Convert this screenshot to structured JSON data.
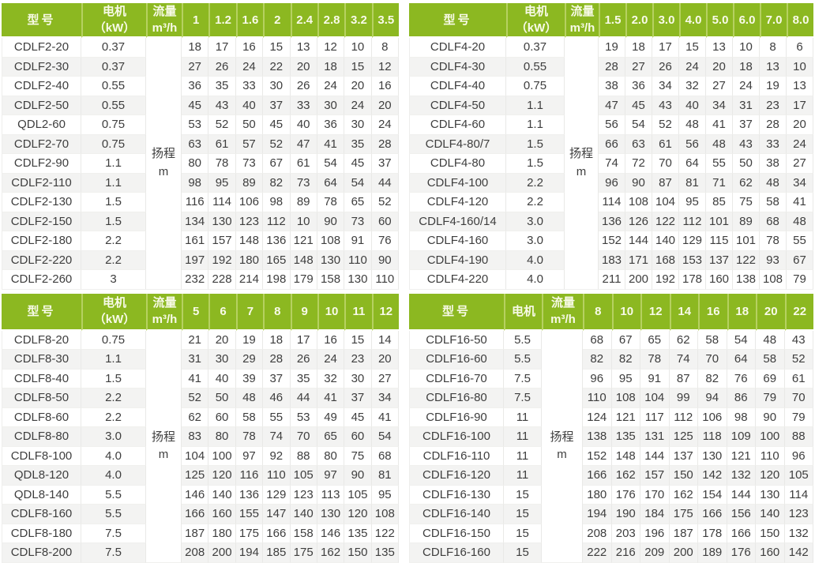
{
  "colors": {
    "header_bg": "#8cb821",
    "header_divider": "#b6d161",
    "header_text": "#f8fae8",
    "body_text": "#3e3e3e",
    "row_alt_bg": "#f3f3f2"
  },
  "shared": {
    "head_label": "扬程",
    "head_unit": "m"
  },
  "tables": [
    {
      "name": "CDLF2",
      "headers": {
        "model": "型号",
        "motor": [
          "电机",
          "（kW）"
        ],
        "flow": [
          "流量",
          "m³/h"
        ]
      },
      "flow_columns": [
        "1",
        "1.2",
        "1.6",
        "2",
        "2.4",
        "2.8",
        "3.2",
        "3.5"
      ],
      "rows": [
        {
          "model": "CDLF2-20",
          "motor": "0.37",
          "heads": [
            18,
            17,
            16,
            15,
            13,
            12,
            10,
            8
          ]
        },
        {
          "model": "CDLF2-30",
          "motor": "0.37",
          "heads": [
            27,
            26,
            24,
            22,
            20,
            18,
            15,
            12
          ]
        },
        {
          "model": "CDLF2-40",
          "motor": "0.55",
          "heads": [
            36,
            35,
            33,
            30,
            26,
            24,
            20,
            16
          ]
        },
        {
          "model": "CDLF2-50",
          "motor": "0.55",
          "heads": [
            45,
            43,
            40,
            37,
            33,
            30,
            24,
            20
          ]
        },
        {
          "model": "QDL2-60",
          "motor": "0.75",
          "heads": [
            53,
            52,
            50,
            45,
            40,
            36,
            30,
            24
          ]
        },
        {
          "model": "CDLF2-70",
          "motor": "0.75",
          "heads": [
            63,
            61,
            57,
            52,
            47,
            41,
            35,
            28
          ]
        },
        {
          "model": "CDLF2-90",
          "motor": "1.1",
          "heads": [
            80,
            78,
            73,
            67,
            61,
            54,
            45,
            37
          ]
        },
        {
          "model": "CDLF2-110",
          "motor": "1.1",
          "heads": [
            98,
            95,
            89,
            82,
            73,
            64,
            54,
            44
          ]
        },
        {
          "model": "CDLF2-130",
          "motor": "1.5",
          "heads": [
            116,
            114,
            106,
            98,
            89,
            78,
            65,
            52
          ]
        },
        {
          "model": "CDLF2-150",
          "motor": "1.5",
          "heads": [
            134,
            130,
            123,
            112,
            10,
            90,
            73,
            60
          ]
        },
        {
          "model": "CDLF2-180",
          "motor": "2.2",
          "heads": [
            161,
            157,
            148,
            136,
            121,
            108,
            91,
            76
          ]
        },
        {
          "model": "CDLF2-220",
          "motor": "2.2",
          "heads": [
            197,
            192,
            180,
            165,
            148,
            130,
            110,
            90
          ]
        },
        {
          "model": "CDLF2-260",
          "motor": "3",
          "heads": [
            232,
            228,
            214,
            198,
            179,
            158,
            130,
            110
          ]
        }
      ]
    },
    {
      "name": "CDLF4",
      "headers": {
        "model": "型号",
        "motor": [
          "电机",
          "（kW）"
        ],
        "flow": [
          "流量",
          "m³/h"
        ]
      },
      "flow_columns": [
        "1.5",
        "2.0",
        "3.0",
        "4.0",
        "5.0",
        "6.0",
        "7.0",
        "8.0"
      ],
      "rows": [
        {
          "model": "CDLF4-20",
          "motor": "0.37",
          "heads": [
            19,
            18,
            17,
            15,
            13,
            10,
            8,
            6
          ]
        },
        {
          "model": "CDLF4-30",
          "motor": "0.55",
          "heads": [
            28,
            27,
            26,
            24,
            20,
            18,
            13,
            10
          ]
        },
        {
          "model": "CDLF4-40",
          "motor": "0.75",
          "heads": [
            38,
            36,
            34,
            32,
            27,
            24,
            19,
            13
          ]
        },
        {
          "model": "CDLF4-50",
          "motor": "1.1",
          "heads": [
            47,
            45,
            43,
            40,
            34,
            31,
            23,
            17
          ]
        },
        {
          "model": "CDLF4-60",
          "motor": "1.1",
          "heads": [
            56,
            54,
            52,
            48,
            41,
            37,
            28,
            20
          ]
        },
        {
          "model": "CDLF4-80/7",
          "motor": "1.5",
          "heads": [
            66,
            63,
            61,
            56,
            48,
            43,
            33,
            24
          ]
        },
        {
          "model": "CDLF4-80",
          "motor": "1.5",
          "heads": [
            74,
            72,
            70,
            64,
            55,
            50,
            38,
            27
          ]
        },
        {
          "model": "CDLF4-100",
          "motor": "2.2",
          "heads": [
            96,
            90,
            87,
            81,
            71,
            62,
            48,
            34
          ]
        },
        {
          "model": "CDLF4-120",
          "motor": "2.2",
          "heads": [
            114,
            108,
            104,
            95,
            85,
            75,
            58,
            41
          ]
        },
        {
          "model": "CDLF4-160/14",
          "motor": "3.0",
          "heads": [
            136,
            126,
            122,
            112,
            101,
            89,
            68,
            48
          ]
        },
        {
          "model": "CDLF4-160",
          "motor": "3.0",
          "heads": [
            152,
            144,
            140,
            129,
            115,
            101,
            78,
            55
          ]
        },
        {
          "model": "CDLF4-190",
          "motor": "4.0",
          "heads": [
            183,
            171,
            168,
            153,
            137,
            122,
            93,
            67
          ]
        },
        {
          "model": "CDLF4-220",
          "motor": "4.0",
          "heads": [
            211,
            200,
            192,
            178,
            160,
            138,
            108,
            79
          ]
        }
      ]
    },
    {
      "name": "CDLF8",
      "headers": {
        "model": "型号",
        "motor": [
          "电机",
          "（kW）"
        ],
        "flow": [
          "流量",
          "m³/h"
        ]
      },
      "flow_columns": [
        "5",
        "6",
        "7",
        "8",
        "9",
        "10",
        "11",
        "12"
      ],
      "rows": [
        {
          "model": "CDLF8-20",
          "motor": "0.75",
          "heads": [
            21,
            20,
            19,
            18,
            17,
            16,
            15,
            14
          ]
        },
        {
          "model": "CDLF8-30",
          "motor": "1.1",
          "heads": [
            31,
            30,
            29,
            28,
            26,
            24,
            23,
            20
          ]
        },
        {
          "model": "CDLF8-40",
          "motor": "1.5",
          "heads": [
            41,
            40,
            39,
            37,
            35,
            32,
            30,
            27
          ]
        },
        {
          "model": "CDLF8-50",
          "motor": "2.2",
          "heads": [
            52,
            50,
            48,
            46,
            44,
            41,
            37,
            34
          ]
        },
        {
          "model": "CDLF8-60",
          "motor": "2.2",
          "heads": [
            62,
            60,
            58,
            55,
            53,
            49,
            45,
            41
          ]
        },
        {
          "model": "CDLF8-80",
          "motor": "3.0",
          "heads": [
            83,
            80,
            78,
            74,
            70,
            65,
            60,
            54
          ]
        },
        {
          "model": "CDLF8-100",
          "motor": "4.0",
          "heads": [
            104,
            100,
            97,
            92,
            88,
            80,
            75,
            68
          ]
        },
        {
          "model": "QDL8-120",
          "motor": "4.0",
          "heads": [
            125,
            120,
            116,
            110,
            105,
            97,
            90,
            81
          ]
        },
        {
          "model": "QDL8-140",
          "motor": "5.5",
          "heads": [
            146,
            140,
            136,
            129,
            123,
            113,
            105,
            95
          ]
        },
        {
          "model": "CDLF8-160",
          "motor": "5.5",
          "heads": [
            166,
            160,
            155,
            147,
            140,
            130,
            120,
            108
          ]
        },
        {
          "model": "CDLF8-180",
          "motor": "7.5",
          "heads": [
            187,
            180,
            175,
            166,
            158,
            146,
            135,
            122
          ]
        },
        {
          "model": "CDLF8-200",
          "motor": "7.5",
          "heads": [
            208,
            200,
            194,
            185,
            175,
            162,
            150,
            135
          ]
        }
      ]
    },
    {
      "name": "CDLF16",
      "headers": {
        "model": "型号",
        "motor": [
          "电机"
        ],
        "flow": [
          "流量",
          "m³/h"
        ]
      },
      "flow_columns": [
        "8",
        "10",
        "12",
        "14",
        "16",
        "18",
        "20",
        "22"
      ],
      "rows": [
        {
          "model": "CDLF16-50",
          "motor": "5.5",
          "heads": [
            68,
            67,
            65,
            62,
            58,
            54,
            48,
            43
          ]
        },
        {
          "model": "CDLF16-60",
          "motor": "5.5",
          "heads": [
            82,
            82,
            78,
            74,
            70,
            64,
            58,
            52
          ]
        },
        {
          "model": "CDLF16-70",
          "motor": "7.5",
          "heads": [
            96,
            95,
            91,
            87,
            82,
            76,
            69,
            61
          ]
        },
        {
          "model": "CDLF16-80",
          "motor": "7.5",
          "heads": [
            110,
            108,
            104,
            99,
            94,
            86,
            79,
            70
          ]
        },
        {
          "model": "CDLF16-90",
          "motor": "11",
          "heads": [
            124,
            121,
            117,
            112,
            106,
            98,
            90,
            79
          ]
        },
        {
          "model": "CDLF16-100",
          "motor": "11",
          "heads": [
            138,
            135,
            131,
            125,
            118,
            109,
            100,
            88
          ]
        },
        {
          "model": "CDLF16-110",
          "motor": "11",
          "heads": [
            152,
            148,
            144,
            137,
            130,
            121,
            110,
            96
          ]
        },
        {
          "model": "CDLF16-120",
          "motor": "11",
          "heads": [
            166,
            162,
            157,
            150,
            142,
            132,
            120,
            105
          ]
        },
        {
          "model": "CDLF16-130",
          "motor": "15",
          "heads": [
            180,
            176,
            170,
            162,
            154,
            144,
            130,
            114
          ]
        },
        {
          "model": "CDLF16-140",
          "motor": "15",
          "heads": [
            194,
            190,
            184,
            175,
            166,
            156,
            140,
            123
          ]
        },
        {
          "model": "CDLF16-150",
          "motor": "15",
          "heads": [
            208,
            203,
            196,
            187,
            178,
            166,
            150,
            132
          ]
        },
        {
          "model": "CDLF16-160",
          "motor": "15",
          "heads": [
            222,
            216,
            209,
            200,
            189,
            176,
            160,
            142
          ]
        }
      ]
    }
  ]
}
